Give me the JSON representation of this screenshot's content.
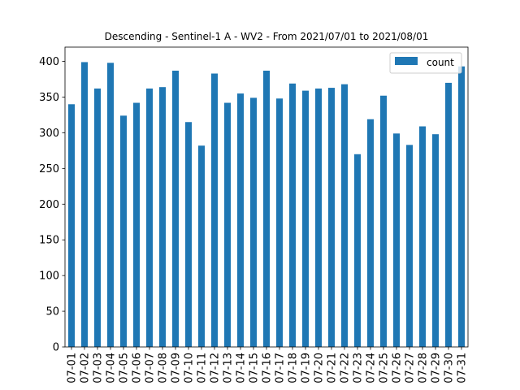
{
  "chart_data": {
    "type": "bar",
    "title": "Descending - Sentinel-1 A - WV2 - From 2021/07/01 to 2021/08/01",
    "xlabel": "",
    "ylabel": "",
    "ylim": [
      0,
      420
    ],
    "yticks": [
      0,
      50,
      100,
      150,
      200,
      250,
      300,
      350,
      400
    ],
    "grid": false,
    "legend_position": "top-right",
    "bar_color": "#1f77b4",
    "categories": [
      "07-01",
      "07-02",
      "07-03",
      "07-04",
      "07-05",
      "07-06",
      "07-07",
      "07-08",
      "07-09",
      "07-10",
      "07-11",
      "07-12",
      "07-13",
      "07-14",
      "07-15",
      "07-16",
      "07-17",
      "07-18",
      "07-19",
      "07-20",
      "07-21",
      "07-22",
      "07-23",
      "07-24",
      "07-25",
      "07-26",
      "07-27",
      "07-28",
      "07-29",
      "07-30",
      "07-31"
    ],
    "series": [
      {
        "name": "count",
        "values": [
          340,
          399,
          362,
          398,
          324,
          342,
          362,
          364,
          387,
          315,
          282,
          383,
          342,
          355,
          349,
          387,
          348,
          369,
          359,
          362,
          363,
          368,
          270,
          319,
          352,
          299,
          283,
          309,
          298,
          370,
          393
        ]
      }
    ]
  }
}
